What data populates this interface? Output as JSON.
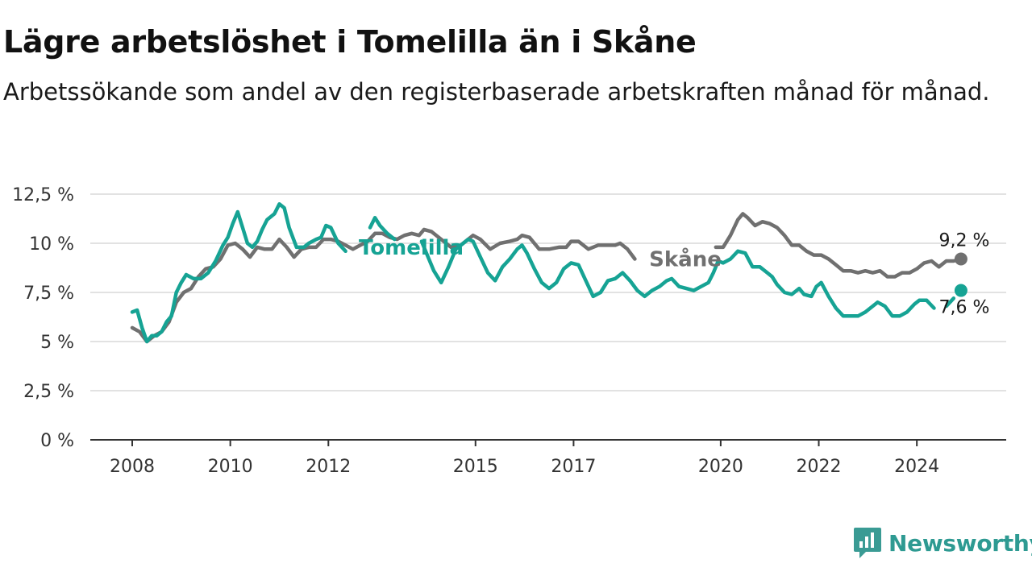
{
  "title": "Lägre arbetslöshet i Tomelilla än i Skåne",
  "subtitle": "Arbetssökande som andel av den registerbaserade arbetskraften månad för månad.",
  "brand": {
    "name": "Newsworthy",
    "icon": "newsworthy-chart-bubble-icon",
    "color": "#3a9b94"
  },
  "colors": {
    "tomelilla": "#16a394",
    "skane": "#707070",
    "grid": "#d9d9d9",
    "axis": "#333333"
  },
  "chart_data": {
    "type": "line",
    "ylim": [
      0,
      12.5
    ],
    "xlim": [
      2008.0,
      2025.0
    ],
    "yticks": [
      {
        "value": 0,
        "label": "0 %"
      },
      {
        "value": 2.5,
        "label": "2,5 %"
      },
      {
        "value": 5,
        "label": "5 %"
      },
      {
        "value": 7.5,
        "label": "7,5 %"
      },
      {
        "value": 10,
        "label": "10 %"
      },
      {
        "value": 12.5,
        "label": "12,5 %"
      }
    ],
    "xticks": [
      {
        "value": 2008,
        "label": "2008"
      },
      {
        "value": 2010,
        "label": "2010"
      },
      {
        "value": 2012,
        "label": "2012"
      },
      {
        "value": 2015,
        "label": "2015"
      },
      {
        "value": 2017,
        "label": "2017"
      },
      {
        "value": 2020,
        "label": "2020"
      },
      {
        "value": 2022,
        "label": "2022"
      },
      {
        "value": 2024,
        "label": "2024"
      }
    ],
    "grid": true,
    "series": [
      {
        "name": "Skåne",
        "end_label": "9,2 %",
        "points": [
          [
            2008.0,
            5.7
          ],
          [
            2008.15,
            5.5
          ],
          [
            2008.3,
            5.0
          ],
          [
            2008.45,
            5.3
          ],
          [
            2008.6,
            5.5
          ],
          [
            2008.75,
            6.0
          ],
          [
            2008.9,
            7.0
          ],
          [
            2009.05,
            7.5
          ],
          [
            2009.2,
            7.7
          ],
          [
            2009.35,
            8.3
          ],
          [
            2009.5,
            8.7
          ],
          [
            2009.65,
            8.8
          ],
          [
            2009.8,
            9.2
          ],
          [
            2009.95,
            9.9
          ],
          [
            2010.1,
            10.0
          ],
          [
            2010.25,
            9.7
          ],
          [
            2010.4,
            9.3
          ],
          [
            2010.55,
            9.8
          ],
          [
            2010.7,
            9.7
          ],
          [
            2010.85,
            9.7
          ],
          [
            2011.0,
            10.2
          ],
          [
            2011.15,
            9.8
          ],
          [
            2011.3,
            9.3
          ],
          [
            2011.45,
            9.7
          ],
          [
            2011.6,
            9.8
          ],
          [
            2011.75,
            9.8
          ],
          [
            2011.9,
            10.2
          ],
          [
            2012.05,
            10.2
          ],
          [
            2012.2,
            10.1
          ],
          [
            2012.35,
            9.9
          ],
          [
            2012.5,
            9.7
          ],
          [
            2012.65,
            9.9
          ],
          [
            2012.8,
            10.1
          ],
          [
            2012.95,
            10.5
          ],
          [
            2013.1,
            10.5
          ],
          [
            2013.25,
            10.3
          ],
          [
            2013.4,
            10.2
          ],
          [
            2013.55,
            10.4
          ],
          [
            2013.7,
            10.5
          ],
          [
            2013.85,
            10.4
          ],
          [
            2013.95,
            10.7
          ],
          [
            2014.1,
            10.6
          ],
          [
            2014.3,
            10.2
          ],
          [
            2014.5,
            9.8
          ],
          [
            2014.7,
            9.9
          ],
          [
            2014.85,
            10.2
          ],
          [
            2014.95,
            10.4
          ],
          [
            2015.1,
            10.2
          ],
          [
            2015.3,
            9.7
          ],
          [
            2015.5,
            10.0
          ],
          [
            2015.7,
            10.1
          ],
          [
            2015.85,
            10.2
          ],
          [
            2015.95,
            10.4
          ],
          [
            2016.1,
            10.3
          ],
          [
            2016.3,
            9.7
          ],
          [
            2016.5,
            9.7
          ],
          [
            2016.7,
            9.8
          ],
          [
            2016.85,
            9.8
          ],
          [
            2016.95,
            10.1
          ],
          [
            2017.1,
            10.1
          ],
          [
            2017.3,
            9.7
          ],
          [
            2017.5,
            9.9
          ],
          [
            2017.7,
            9.9
          ],
          [
            2017.85,
            9.9
          ],
          [
            2017.95,
            10.0
          ],
          [
            2018.1,
            9.7
          ],
          [
            2018.25,
            9.2
          ]
        ],
        "points_b": [
          [
            2019.9,
            9.8
          ],
          [
            2020.05,
            9.8
          ],
          [
            2020.2,
            10.4
          ],
          [
            2020.35,
            11.2
          ],
          [
            2020.45,
            11.5
          ],
          [
            2020.55,
            11.3
          ],
          [
            2020.7,
            10.9
          ],
          [
            2020.85,
            11.1
          ],
          [
            2021.0,
            11.0
          ],
          [
            2021.15,
            10.8
          ],
          [
            2021.3,
            10.4
          ],
          [
            2021.45,
            9.9
          ],
          [
            2021.6,
            9.9
          ],
          [
            2021.75,
            9.6
          ],
          [
            2021.9,
            9.4
          ],
          [
            2022.05,
            9.4
          ],
          [
            2022.2,
            9.2
          ],
          [
            2022.35,
            8.9
          ],
          [
            2022.5,
            8.6
          ],
          [
            2022.65,
            8.6
          ],
          [
            2022.8,
            8.5
          ],
          [
            2022.95,
            8.6
          ],
          [
            2023.1,
            8.5
          ],
          [
            2023.25,
            8.6
          ],
          [
            2023.4,
            8.3
          ],
          [
            2023.55,
            8.3
          ],
          [
            2023.7,
            8.5
          ],
          [
            2023.85,
            8.5
          ],
          [
            2024.0,
            8.7
          ],
          [
            2024.15,
            9.0
          ],
          [
            2024.3,
            9.1
          ],
          [
            2024.45,
            8.8
          ],
          [
            2024.6,
            9.1
          ],
          [
            2024.75,
            9.1
          ],
          [
            2024.9,
            9.2
          ]
        ],
        "end": [
          2024.9,
          9.2
        ]
      },
      {
        "name": "Tomelilla",
        "end_label": "7,6 %",
        "points": [
          [
            2008.0,
            6.5
          ],
          [
            2008.1,
            6.6
          ],
          [
            2008.2,
            5.7
          ],
          [
            2008.3,
            5.0
          ],
          [
            2008.4,
            5.3
          ],
          [
            2008.5,
            5.3
          ],
          [
            2008.6,
            5.5
          ],
          [
            2008.7,
            6.0
          ],
          [
            2008.8,
            6.3
          ],
          [
            2008.9,
            7.5
          ],
          [
            2009.0,
            8.0
          ],
          [
            2009.1,
            8.4
          ],
          [
            2009.25,
            8.2
          ],
          [
            2009.4,
            8.2
          ],
          [
            2009.55,
            8.5
          ],
          [
            2009.7,
            9.1
          ],
          [
            2009.85,
            9.9
          ],
          [
            2009.95,
            10.3
          ],
          [
            2010.05,
            11.0
          ],
          [
            2010.15,
            11.6
          ],
          [
            2010.25,
            10.8
          ],
          [
            2010.35,
            10.0
          ],
          [
            2010.45,
            9.8
          ],
          [
            2010.55,
            10.1
          ],
          [
            2010.65,
            10.7
          ],
          [
            2010.75,
            11.2
          ],
          [
            2010.9,
            11.5
          ],
          [
            2011.0,
            12.0
          ],
          [
            2011.1,
            11.8
          ],
          [
            2011.2,
            10.8
          ],
          [
            2011.35,
            9.8
          ],
          [
            2011.5,
            9.8
          ],
          [
            2011.6,
            10.0
          ],
          [
            2011.75,
            10.2
          ],
          [
            2011.85,
            10.3
          ],
          [
            2011.95,
            10.9
          ],
          [
            2012.05,
            10.8
          ],
          [
            2012.2,
            10.0
          ],
          [
            2012.35,
            9.6
          ]
        ],
        "points_b": [
          [
            2012.85,
            10.8
          ],
          [
            2012.95,
            11.3
          ],
          [
            2013.05,
            10.9
          ],
          [
            2013.2,
            10.5
          ],
          [
            2013.35,
            10.2
          ]
        ],
        "points_c": [
          [
            2013.9,
            10.1
          ],
          [
            2014.0,
            9.5
          ],
          [
            2014.15,
            8.6
          ],
          [
            2014.3,
            8.0
          ],
          [
            2014.45,
            8.8
          ],
          [
            2014.6,
            9.7
          ],
          [
            2014.75,
            10.0
          ],
          [
            2014.85,
            10.2
          ],
          [
            2014.95,
            10.1
          ],
          [
            2015.1,
            9.3
          ],
          [
            2015.25,
            8.5
          ],
          [
            2015.4,
            8.1
          ],
          [
            2015.55,
            8.8
          ],
          [
            2015.7,
            9.2
          ],
          [
            2015.85,
            9.7
          ],
          [
            2015.95,
            9.9
          ],
          [
            2016.05,
            9.5
          ],
          [
            2016.2,
            8.7
          ],
          [
            2016.35,
            8.0
          ],
          [
            2016.5,
            7.7
          ],
          [
            2016.65,
            8.0
          ],
          [
            2016.8,
            8.7
          ],
          [
            2016.95,
            9.0
          ],
          [
            2017.1,
            8.9
          ],
          [
            2017.25,
            8.1
          ],
          [
            2017.4,
            7.3
          ],
          [
            2017.55,
            7.5
          ],
          [
            2017.7,
            8.1
          ],
          [
            2017.85,
            8.2
          ],
          [
            2018.0,
            8.5
          ],
          [
            2018.15,
            8.1
          ],
          [
            2018.3,
            7.6
          ],
          [
            2018.45,
            7.3
          ],
          [
            2018.6,
            7.6
          ],
          [
            2018.75,
            7.8
          ],
          [
            2018.9,
            8.1
          ],
          [
            2019.0,
            8.2
          ],
          [
            2019.15,
            7.8
          ],
          [
            2019.3,
            7.7
          ],
          [
            2019.45,
            7.6
          ],
          [
            2019.6,
            7.8
          ],
          [
            2019.75,
            8.0
          ],
          [
            2019.85,
            8.5
          ],
          [
            2019.95,
            9.1
          ],
          [
            2020.05,
            9.0
          ],
          [
            2020.2,
            9.2
          ],
          [
            2020.35,
            9.6
          ],
          [
            2020.5,
            9.5
          ],
          [
            2020.65,
            8.8
          ],
          [
            2020.8,
            8.8
          ],
          [
            2020.95,
            8.5
          ],
          [
            2021.05,
            8.3
          ],
          [
            2021.15,
            7.9
          ],
          [
            2021.3,
            7.5
          ],
          [
            2021.45,
            7.4
          ],
          [
            2021.6,
            7.7
          ],
          [
            2021.7,
            7.4
          ],
          [
            2021.85,
            7.3
          ],
          [
            2021.95,
            7.8
          ],
          [
            2022.05,
            8.0
          ],
          [
            2022.2,
            7.3
          ],
          [
            2022.35,
            6.7
          ],
          [
            2022.5,
            6.3
          ],
          [
            2022.65,
            6.3
          ],
          [
            2022.8,
            6.3
          ],
          [
            2022.95,
            6.5
          ],
          [
            2023.1,
            6.8
          ],
          [
            2023.2,
            7.0
          ],
          [
            2023.35,
            6.8
          ],
          [
            2023.5,
            6.3
          ],
          [
            2023.65,
            6.3
          ],
          [
            2023.8,
            6.5
          ],
          [
            2023.95,
            6.9
          ],
          [
            2024.05,
            7.1
          ],
          [
            2024.2,
            7.1
          ],
          [
            2024.35,
            6.7
          ]
        ],
        "points_d": [
          [
            2024.6,
            6.8
          ],
          [
            2024.75,
            7.2
          ]
        ],
        "end": [
          2024.9,
          7.6
        ]
      }
    ]
  }
}
